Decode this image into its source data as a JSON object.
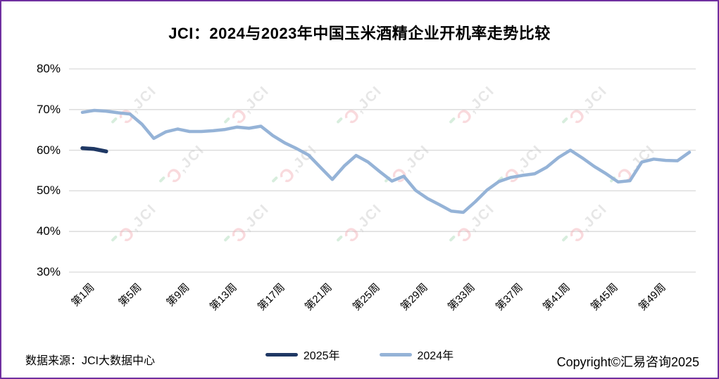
{
  "title": "JCI：2024与2023年中国玉米酒精企业开机率走势比较",
  "footer": {
    "source": "数据来源：JCI大数据中心",
    "copyright": "Copyright©汇易咨询2025"
  },
  "watermark": {
    "logo": "Ɔ",
    "text": "‚JCI"
  },
  "colors": {
    "series_2025": "#1F3864",
    "series_2024": "#95B3D7",
    "grid": "#D9D9D9",
    "border": "#7030A0"
  },
  "chart_data": {
    "type": "line",
    "title": "JCI：2024与2023年中国玉米酒精企业开机率走势比较",
    "ylim": [
      30,
      80
    ],
    "y_tick_values": [
      80,
      70,
      60,
      50,
      40,
      30
    ],
    "y_tick_labels": [
      "80%",
      "70%",
      "60%",
      "50%",
      "40%",
      "30%"
    ],
    "x_range_weeks": [
      1,
      52
    ],
    "x_ticks": [
      {
        "week": 1,
        "label": "第1周"
      },
      {
        "week": 5,
        "label": "第5周"
      },
      {
        "week": 9,
        "label": "第9周"
      },
      {
        "week": 13,
        "label": "第13周"
      },
      {
        "week": 17,
        "label": "第17周"
      },
      {
        "week": 21,
        "label": "第21周"
      },
      {
        "week": 25,
        "label": "第25周"
      },
      {
        "week": 29,
        "label": "第29周"
      },
      {
        "week": 33,
        "label": "第33周"
      },
      {
        "week": 37,
        "label": "第37周"
      },
      {
        "week": 41,
        "label": "第41周"
      },
      {
        "week": 45,
        "label": "第45周"
      },
      {
        "week": 49,
        "label": "第49周"
      }
    ],
    "grid": "horizontal",
    "legend_position": "bottom",
    "series": [
      {
        "name": "2025年",
        "color": "#1F3864",
        "start_week": 1,
        "values": [
          60.5,
          60.3,
          59.7
        ]
      },
      {
        "name": "2024年",
        "color": "#95B3D7",
        "start_week": 1,
        "values": [
          69.3,
          69.8,
          69.6,
          69.2,
          68.9,
          66.4,
          62.9,
          64.5,
          65.2,
          64.6,
          64.6,
          64.8,
          65.1,
          65.7,
          65.4,
          65.9,
          63.6,
          61.8,
          60.4,
          58.8,
          55.8,
          52.8,
          56.1,
          58.7,
          57.1,
          54.7,
          52.4,
          53.6,
          50.1,
          48.1,
          46.6,
          45.0,
          44.7,
          47.3,
          50.2,
          52.3,
          53.3,
          53.8,
          54.2,
          55.8,
          58.2,
          60.0,
          58.1,
          56.0,
          54.2,
          52.2,
          52.5,
          57.1,
          57.8,
          57.5,
          57.4,
          59.5
        ]
      }
    ]
  }
}
